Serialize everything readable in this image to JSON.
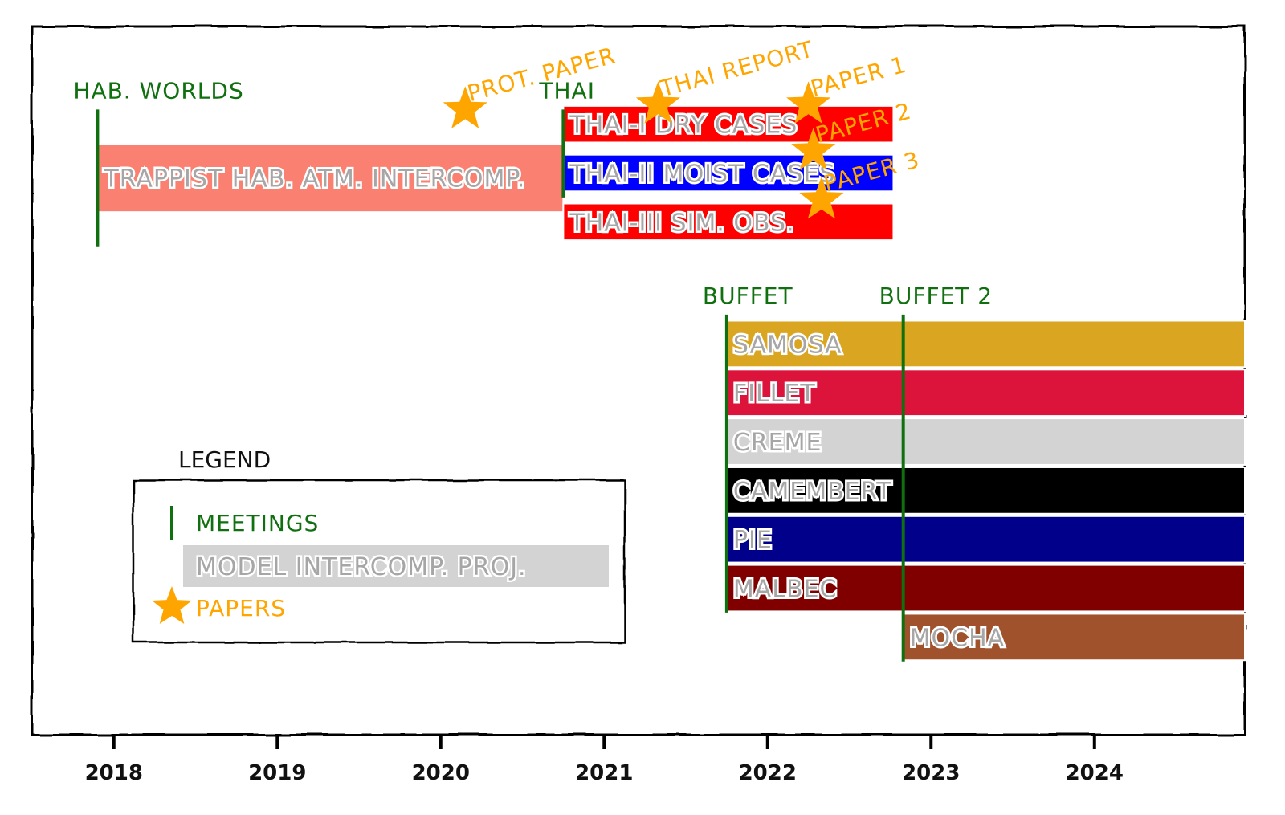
{
  "chart_data": {
    "type": "timeline",
    "title": "",
    "xlabel": "",
    "ylabel": "",
    "xlim": [
      2017.5,
      2024.92
    ],
    "ylim": [
      0,
      14.5
    ],
    "grid": false,
    "x_ticks": [
      2018,
      2019,
      2020,
      2021,
      2022,
      2023,
      2024
    ],
    "projects": [
      {
        "label": "TRAPPIST HAB. ATM. INTERCOMP.",
        "start": 2017.9,
        "end": 2020.75,
        "row": 11.4,
        "height": 1.4,
        "color": "#fa8072"
      },
      {
        "label": "THAI-I DRY CASES",
        "start": 2020.75,
        "end": 2022.77,
        "row": 12.5,
        "height": 0.75,
        "color": "#ff0000"
      },
      {
        "label": "THAI-II MOIST CASES",
        "start": 2020.75,
        "end": 2022.77,
        "row": 11.5,
        "height": 0.75,
        "color": "#0000ff"
      },
      {
        "label": "THAI-III SIM. OBS.",
        "start": 2020.75,
        "end": 2022.77,
        "row": 10.5,
        "height": 0.75,
        "color": "#ff0000"
      },
      {
        "label": "SAMOSA",
        "start": 2021.75,
        "end": 2024.92,
        "row": 8.0,
        "height": 0.95,
        "color": "#daa520"
      },
      {
        "label": "FILLET",
        "start": 2021.75,
        "end": 2024.92,
        "row": 7.0,
        "height": 0.95,
        "color": "#dc143c"
      },
      {
        "label": "CREME",
        "start": 2021.75,
        "end": 2024.92,
        "row": 6.0,
        "height": 0.95,
        "color": "#d3d3d3"
      },
      {
        "label": "CAMEMBERT",
        "start": 2021.75,
        "end": 2024.92,
        "row": 5.0,
        "height": 0.95,
        "color": "#000000"
      },
      {
        "label": "PIE",
        "start": 2021.75,
        "end": 2024.92,
        "row": 4.0,
        "height": 0.95,
        "color": "#00008b"
      },
      {
        "label": "MALBEC",
        "start": 2021.75,
        "end": 2024.92,
        "row": 3.0,
        "height": 0.95,
        "color": "#800000"
      },
      {
        "label": "MOCHA",
        "start": 2022.83,
        "end": 2024.92,
        "row": 2.0,
        "height": 0.95,
        "color": "#a0522d"
      }
    ],
    "meetings": [
      {
        "label": "HAB. WORLDS",
        "date": 2017.9,
        "y_from": 10.0,
        "y_to": 12.8
      },
      {
        "label": "THAI",
        "date": 2020.75,
        "y_from": 11.0,
        "y_to": 12.8
      },
      {
        "label": "BUFFET",
        "date": 2021.75,
        "y_from": 2.5,
        "y_to": 8.6
      },
      {
        "label": "BUFFET 2",
        "date": 2022.83,
        "y_from": 1.5,
        "y_to": 8.6
      }
    ],
    "papers": [
      {
        "label": "PROT. PAPER",
        "date": 2020.15,
        "y": 12.8
      },
      {
        "label": "THAI REPORT",
        "date": 2021.33,
        "y": 12.9
      },
      {
        "label": "PAPER 1",
        "date": 2022.25,
        "y": 12.9
      },
      {
        "label": "PAPER 2",
        "date": 2022.28,
        "y": 11.95
      },
      {
        "label": "PAPER 3",
        "date": 2022.33,
        "y": 10.95
      }
    ],
    "legend": {
      "title": "LEGEND",
      "placement": "lower-left",
      "items": [
        {
          "label": "MEETINGS",
          "kind": "meeting",
          "color": "#107010"
        },
        {
          "label": "MODEL INTERCOMP. PROJ.",
          "kind": "project",
          "color": "#d3d3d3"
        },
        {
          "label": "PAPERS",
          "kind": "paper",
          "color": "#ffa500"
        }
      ]
    },
    "colors": {
      "meeting": "#107010",
      "paper": "#ffa500",
      "project_text": "#a6a6a6"
    }
  }
}
